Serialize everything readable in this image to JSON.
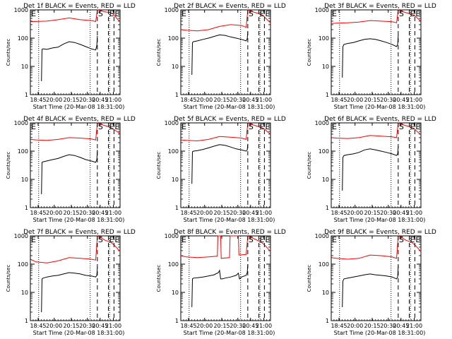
{
  "colors": {
    "events": "#000000",
    "lld": "#ff0000",
    "axis": "#000000",
    "background": "#ffffff"
  },
  "shared": {
    "xlabel": "Start Time (20-Mar-08 18:31:00)",
    "ylabel": "Counts/sec",
    "x_ticks": [
      "18:45",
      "20:00",
      "20:15",
      "20:30",
      "20:45",
      "21:00"
    ],
    "y_ticks": [
      "1",
      "10",
      "100",
      "1000"
    ],
    "y_scale": "log",
    "ylim": [
      1,
      1000
    ],
    "xlim_minutes_after_start": [
      0,
      162
    ],
    "markers": [
      {
        "label": "E",
        "minute": 0,
        "style": "dashed"
      },
      {
        "label": "S",
        "minute": 121,
        "style": "dashed"
      },
      {
        "label": "E",
        "minute": 141,
        "style": "dashed"
      },
      {
        "label": "E",
        "minute": 151,
        "style": "dashed"
      }
    ],
    "dotted_lines_minutes": [
      15,
      108,
      143
    ]
  },
  "chart_data": [
    {
      "type": "line",
      "title": "Det 1f BLACK = Events, RED = LLD",
      "series": [
        {
          "name": "BLACK = Events",
          "x": [
            20,
            21,
            23,
            30,
            40,
            50,
            60,
            70,
            80,
            90,
            100,
            110,
            118,
            120,
            121
          ],
          "values": [
            3,
            40,
            42,
            40,
            45,
            48,
            62,
            75,
            70,
            60,
            50,
            42,
            38,
            55,
            120
          ]
        },
        {
          "name": "RED = LLD",
          "x": [
            0,
            10,
            30,
            50,
            70,
            90,
            110,
            118,
            121,
            126,
            135,
            145,
            150,
            156,
            162
          ],
          "values": [
            380,
            390,
            400,
            450,
            520,
            450,
            420,
            390,
            1000,
            950,
            850,
            800,
            700,
            500,
            380
          ]
        }
      ]
    },
    {
      "type": "line",
      "title": "Det 2f BLACK = Events, RED = LLD",
      "series": [
        {
          "name": "BLACK = Events",
          "x": [
            20,
            21,
            23,
            30,
            40,
            50,
            60,
            70,
            80,
            90,
            100,
            110,
            118,
            120,
            121
          ],
          "values": [
            5,
            70,
            75,
            80,
            90,
            100,
            115,
            130,
            125,
            110,
            100,
            90,
            80,
            95,
            170
          ]
        },
        {
          "name": "RED = LLD",
          "x": [
            0,
            10,
            30,
            50,
            70,
            90,
            110,
            118,
            121,
            126,
            135,
            145,
            150,
            156,
            162
          ],
          "values": [
            200,
            190,
            180,
            200,
            260,
            300,
            280,
            240,
            1000,
            900,
            800,
            700,
            600,
            450,
            350
          ]
        }
      ]
    },
    {
      "type": "line",
      "title": "Det 3f BLACK = Events, RED = LLD",
      "series": [
        {
          "name": "BLACK = Events",
          "x": [
            20,
            21,
            23,
            30,
            40,
            50,
            60,
            70,
            80,
            90,
            100,
            110,
            118,
            120,
            121
          ],
          "values": [
            4,
            50,
            60,
            65,
            70,
            80,
            90,
            95,
            90,
            80,
            70,
            60,
            50,
            60,
            130
          ]
        },
        {
          "name": "RED = LLD",
          "x": [
            0,
            10,
            30,
            50,
            70,
            90,
            110,
            118,
            121,
            126,
            135,
            145,
            150,
            156,
            162
          ],
          "values": [
            330,
            340,
            350,
            370,
            420,
            400,
            380,
            350,
            1000,
            900,
            800,
            700,
            650,
            500,
            400
          ]
        }
      ]
    },
    {
      "type": "line",
      "title": "Det 4f BLACK = Events, RED = LLD",
      "series": [
        {
          "name": "BLACK = Events",
          "x": [
            20,
            21,
            23,
            30,
            40,
            50,
            60,
            70,
            80,
            90,
            100,
            110,
            118,
            120,
            121
          ],
          "values": [
            3,
            40,
            42,
            45,
            50,
            55,
            65,
            75,
            70,
            60,
            50,
            45,
            40,
            50,
            110
          ]
        },
        {
          "name": "RED = LLD",
          "x": [
            0,
            10,
            30,
            50,
            70,
            90,
            110,
            118,
            121,
            126,
            135,
            145,
            150,
            156,
            162
          ],
          "values": [
            260,
            250,
            240,
            260,
            300,
            290,
            270,
            250,
            1000,
            900,
            800,
            700,
            600,
            500,
            420
          ]
        }
      ]
    },
    {
      "type": "line",
      "title": "Det 5f BLACK = Events, RED = LLD",
      "series": [
        {
          "name": "BLACK = Events",
          "x": [
            20,
            21,
            23,
            30,
            40,
            50,
            60,
            70,
            80,
            90,
            100,
            110,
            118,
            120,
            121
          ],
          "values": [
            7,
            95,
            100,
            105,
            115,
            130,
            150,
            170,
            160,
            140,
            120,
            110,
            100,
            110,
            180
          ]
        },
        {
          "name": "RED = LLD",
          "x": [
            0,
            10,
            30,
            50,
            70,
            90,
            110,
            118,
            121,
            126,
            135,
            145,
            150,
            156,
            162
          ],
          "values": [
            250,
            240,
            230,
            260,
            330,
            310,
            290,
            260,
            1000,
            900,
            800,
            700,
            620,
            500,
            400
          ]
        }
      ]
    },
    {
      "type": "line",
      "title": "Det 6f BLACK = Events, RED = LLD",
      "series": [
        {
          "name": "BLACK = Events",
          "x": [
            20,
            21,
            23,
            30,
            40,
            50,
            60,
            70,
            80,
            90,
            100,
            110,
            118,
            120,
            121
          ],
          "values": [
            4,
            60,
            70,
            75,
            80,
            90,
            110,
            120,
            110,
            100,
            90,
            80,
            70,
            80,
            150
          ]
        },
        {
          "name": "RED = LLD",
          "x": [
            0,
            10,
            30,
            50,
            70,
            90,
            110,
            118,
            121,
            126,
            135,
            145,
            150,
            156,
            162
          ],
          "values": [
            300,
            290,
            280,
            300,
            360,
            340,
            320,
            300,
            1000,
            900,
            800,
            700,
            620,
            480,
            380
          ]
        }
      ]
    },
    {
      "type": "line",
      "title": "Det 7f BLACK = Events, RED = LLD",
      "series": [
        {
          "name": "BLACK = Events",
          "x": [
            20,
            21,
            23,
            30,
            40,
            50,
            60,
            70,
            80,
            90,
            100,
            110,
            118,
            120,
            121
          ],
          "values": [
            2,
            30,
            32,
            35,
            38,
            40,
            45,
            50,
            48,
            45,
            40,
            38,
            35,
            40,
            80
          ]
        },
        {
          "name": "RED = LLD",
          "x": [
            0,
            10,
            30,
            50,
            70,
            90,
            110,
            118,
            121,
            126,
            135,
            145,
            150,
            156,
            162
          ],
          "values": [
            150,
            120,
            110,
            130,
            170,
            160,
            150,
            140,
            1000,
            900,
            700,
            600,
            500,
            380,
            280
          ]
        }
      ]
    },
    {
      "type": "line",
      "title": "Det 8f BLACK = Events, RED = LLD",
      "series": [
        {
          "name": "BLACK = Events",
          "x": [
            20,
            21,
            23,
            30,
            40,
            50,
            60,
            68,
            70,
            72,
            75,
            80,
            90,
            100,
            104,
            106,
            110,
            118,
            120,
            121
          ],
          "values": [
            3,
            30,
            32,
            33,
            35,
            38,
            42,
            50,
            60,
            30,
            30,
            32,
            35,
            40,
            48,
            30,
            35,
            40,
            50,
            100
          ]
        },
        {
          "name": "RED = LLD",
          "x": [
            0,
            10,
            30,
            50,
            66,
            67,
            70,
            72,
            73,
            88,
            89,
            100,
            104,
            105,
            118,
            121,
            126,
            135,
            145,
            150,
            156,
            162
          ],
          "values": [
            200,
            180,
            170,
            180,
            190,
            1000,
            1000,
            1000,
            160,
            170,
            1000,
            1000,
            1000,
            210,
            220,
            1000,
            900,
            750,
            600,
            500,
            380,
            280
          ]
        }
      ]
    },
    {
      "type": "line",
      "title": "Det 9f BLACK = Events, RED = LLD",
      "series": [
        {
          "name": "BLACK = Events",
          "x": [
            20,
            21,
            23,
            30,
            40,
            50,
            60,
            70,
            80,
            90,
            100,
            110,
            118,
            120,
            121
          ],
          "values": [
            3,
            25,
            30,
            32,
            35,
            38,
            42,
            45,
            42,
            40,
            38,
            35,
            30,
            35,
            90
          ]
        },
        {
          "name": "RED = LLD",
          "x": [
            0,
            10,
            30,
            50,
            70,
            90,
            110,
            118,
            121,
            126,
            135,
            145,
            150,
            156,
            162
          ],
          "values": [
            170,
            160,
            150,
            160,
            210,
            200,
            180,
            160,
            1000,
            900,
            700,
            600,
            500,
            380,
            280
          ]
        }
      ]
    }
  ]
}
